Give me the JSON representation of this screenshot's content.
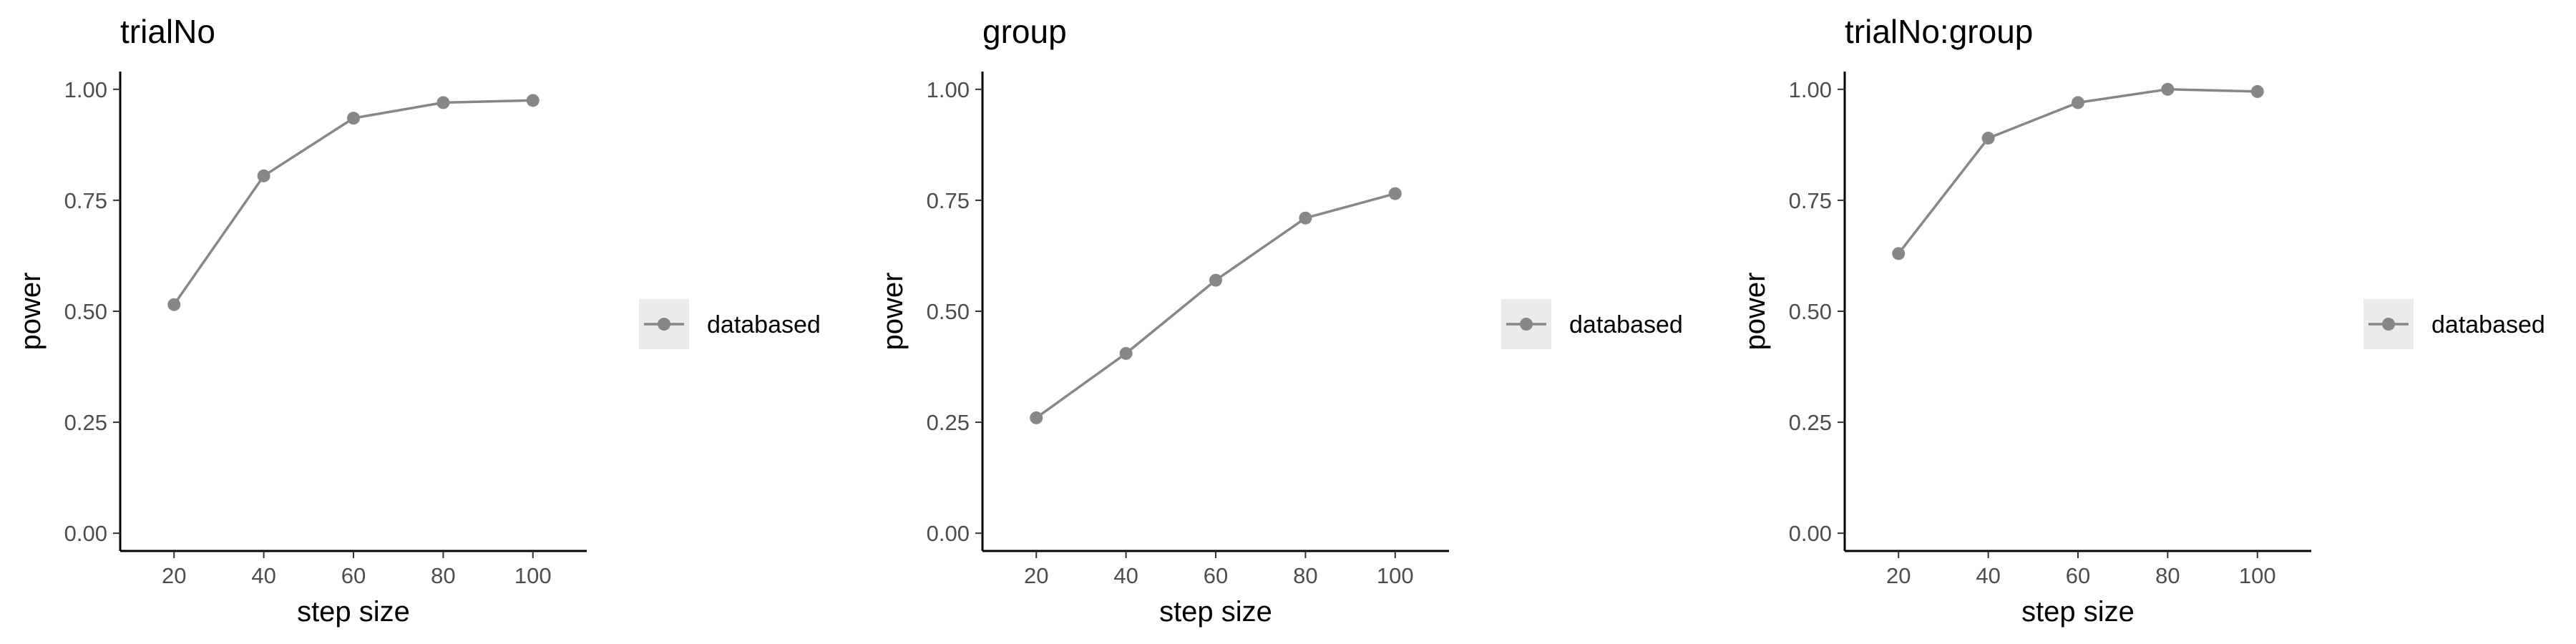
{
  "chart_data": [
    {
      "type": "line",
      "title": "trialNo",
      "xlabel": "step size",
      "ylabel": "power",
      "x": [
        20,
        40,
        60,
        80,
        100
      ],
      "xticks": [
        "20",
        "40",
        "60",
        "80",
        "100"
      ],
      "yticks": [
        "0.00",
        "0.25",
        "0.50",
        "0.75",
        "1.00"
      ],
      "xlim": [
        8,
        112
      ],
      "ylim": [
        -0.04,
        1.04
      ],
      "series": [
        {
          "name": "databased",
          "values": [
            0.515,
            0.805,
            0.935,
            0.97,
            0.975
          ]
        }
      ],
      "legend_position": "right",
      "grid": false
    },
    {
      "type": "line",
      "title": "group",
      "xlabel": "step size",
      "ylabel": "power",
      "x": [
        20,
        40,
        60,
        80,
        100
      ],
      "xticks": [
        "20",
        "40",
        "60",
        "80",
        "100"
      ],
      "yticks": [
        "0.00",
        "0.25",
        "0.50",
        "0.75",
        "1.00"
      ],
      "xlim": [
        8,
        112
      ],
      "ylim": [
        -0.04,
        1.04
      ],
      "series": [
        {
          "name": "databased",
          "values": [
            0.26,
            0.405,
            0.57,
            0.71,
            0.765
          ]
        }
      ],
      "legend_position": "right",
      "grid": false
    },
    {
      "type": "line",
      "title": "trialNo:group",
      "xlabel": "step size",
      "ylabel": "power",
      "x": [
        20,
        40,
        60,
        80,
        100
      ],
      "xticks": [
        "20",
        "40",
        "60",
        "80",
        "100"
      ],
      "yticks": [
        "0.00",
        "0.25",
        "0.50",
        "0.75",
        "1.00"
      ],
      "xlim": [
        8,
        112
      ],
      "ylim": [
        -0.04,
        1.04
      ],
      "series": [
        {
          "name": "databased",
          "values": [
            0.63,
            0.89,
            0.97,
            1.0,
            0.995
          ]
        }
      ],
      "legend_position": "right",
      "grid": false
    }
  ],
  "colors": {
    "series": "#878787",
    "axis": "#000000",
    "tick_text": "#4d4d4d",
    "legend_key_bg": "#ebebeb"
  }
}
